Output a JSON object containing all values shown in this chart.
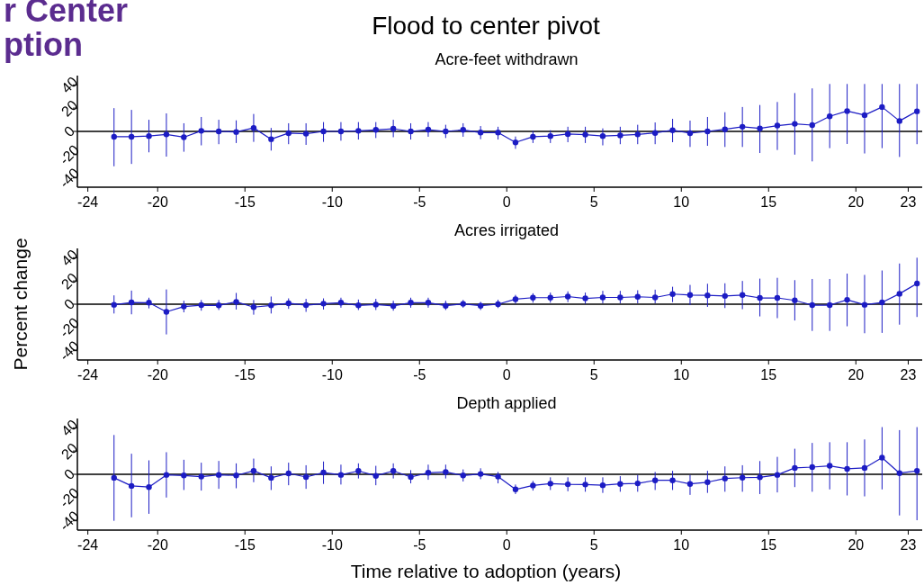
{
  "chart_data": [
    {
      "type": "line",
      "title": "Flood to center pivot",
      "subtitle": "Acre-feet withdrawn",
      "annotations": [
        "r Center",
        "ption"
      ],
      "x": [
        -22.5,
        -21.5,
        -20.5,
        -19.5,
        -18.5,
        -17.5,
        -16.5,
        -15.5,
        -14.5,
        -13.5,
        -12.5,
        -11.5,
        -10.5,
        -9.5,
        -8.5,
        -7.5,
        -6.5,
        -5.5,
        -4.5,
        -3.5,
        -2.5,
        -1.5,
        -0.5,
        0.5,
        1.5,
        2.5,
        3.5,
        4.5,
        5.5,
        6.5,
        7.5,
        8.5,
        9.5,
        10.5,
        11.5,
        12.5,
        13.5,
        14.5,
        15.5,
        16.5,
        17.5,
        18.5,
        19.5,
        20.5,
        21.5,
        22.5,
        23.5
      ],
      "xlim": [
        -24.6,
        23.8
      ],
      "xticks": [
        -24,
        -20,
        -15,
        -10,
        -5,
        0,
        5,
        10,
        15,
        20,
        23
      ],
      "ylim": [
        -48,
        48
      ],
      "yticks": [
        -40,
        -20,
        0,
        20,
        40
      ],
      "marker": "circle",
      "grid": false,
      "ref_lines": [
        {
          "axis": "y",
          "value": 0,
          "color": "#000000"
        }
      ],
      "series": [
        {
          "color": "#1c1cc4",
          "values": [
            -4.6,
            -4.6,
            -4,
            -2.6,
            -5,
            0.5,
            0,
            -0.5,
            3,
            -6.7,
            -1.5,
            -2,
            0,
            0,
            0.5,
            1.3,
            2.3,
            0,
            1.5,
            0,
            1.3,
            -1,
            -1,
            -9.5,
            -4.6,
            -4,
            -2.3,
            -2.8,
            -4,
            -3.4,
            -2.6,
            -1.3,
            1,
            -1.5,
            0,
            1.8,
            4,
            2.6,
            5,
            6.5,
            5.4,
            13,
            17.5,
            14,
            21,
            9,
            17.3
          ],
          "errors": [
            [
              -30,
              20
            ],
            [
              -28,
              18.5
            ],
            [
              -18,
              10
            ],
            [
              -21.7,
              15.5
            ],
            [
              -17.5,
              7
            ],
            [
              -12,
              12.4
            ],
            [
              -11,
              10
            ],
            [
              -10,
              9.5
            ],
            [
              -9,
              15
            ],
            [
              -16.5,
              3
            ],
            [
              -11,
              7
            ],
            [
              -11.6,
              7
            ],
            [
              -9,
              8
            ],
            [
              -8,
              8
            ],
            [
              -7,
              8
            ],
            [
              -5.7,
              8
            ],
            [
              -5,
              10
            ],
            [
              -7,
              7
            ],
            [
              -4.6,
              8
            ],
            [
              -5.7,
              5.7
            ],
            [
              -4.6,
              7
            ],
            [
              -6.7,
              4.6
            ],
            [
              -7,
              4
            ],
            [
              -15,
              -4.4
            ],
            [
              -10,
              0.5
            ],
            [
              -10,
              1
            ],
            [
              -9.3,
              4
            ],
            [
              -10,
              4
            ],
            [
              -12,
              2.6
            ],
            [
              -11,
              4
            ],
            [
              -11,
              5.7
            ],
            [
              -11,
              7.7
            ],
            [
              -9.3,
              10.8
            ],
            [
              -13.4,
              9.3
            ],
            [
              -12.4,
              12.4
            ],
            [
              -13.4,
              16.5
            ],
            [
              -13.4,
              21
            ],
            [
              -18.6,
              22.7
            ],
            [
              -16,
              25.3
            ],
            [
              -20,
              33
            ],
            [
              -25.8,
              37
            ],
            [
              -14.4,
              40.8
            ],
            [
              -10.8,
              40.8
            ],
            [
              -19,
              40.8
            ],
            [
              -14.4,
              40.8
            ],
            [
              -22,
              40.8
            ],
            [
              -11,
              40.8
            ]
          ]
        }
      ]
    },
    {
      "type": "line",
      "subtitle": "Acres irrigated",
      "ylabel": "Percent change",
      "x": [
        -22.5,
        -21.5,
        -20.5,
        -19.5,
        -18.5,
        -17.5,
        -16.5,
        -15.5,
        -14.5,
        -13.5,
        -12.5,
        -11.5,
        -10.5,
        -9.5,
        -8.5,
        -7.5,
        -6.5,
        -5.5,
        -4.5,
        -3.5,
        -2.5,
        -1.5,
        -0.5,
        0.5,
        1.5,
        2.5,
        3.5,
        4.5,
        5.5,
        6.5,
        7.5,
        8.5,
        9.5,
        10.5,
        11.5,
        12.5,
        13.5,
        14.5,
        15.5,
        16.5,
        17.5,
        18.5,
        19.5,
        20.5,
        21.5,
        22.5,
        23.5
      ],
      "xlim": [
        -24.6,
        23.8
      ],
      "xticks": [
        -24,
        -20,
        -15,
        -10,
        -5,
        0,
        5,
        10,
        15,
        20,
        23
      ],
      "ylim": [
        -48,
        48
      ],
      "yticks": [
        -40,
        -20,
        0,
        20,
        40
      ],
      "marker": "circle",
      "grid": false,
      "ref_lines": [
        {
          "axis": "y",
          "value": 0,
          "color": "#000000"
        }
      ],
      "series": [
        {
          "color": "#1c1cc4",
          "values": [
            -0.5,
            1.5,
            1.3,
            -6.6,
            -2,
            -0.8,
            -1,
            2,
            -2.5,
            -1,
            0.8,
            -0.8,
            0.5,
            1.3,
            -1,
            -0.3,
            -1.5,
            1.3,
            1.3,
            -1.3,
            0.3,
            -1.3,
            0,
            4.3,
            5.6,
            5.6,
            6.6,
            5,
            5.8,
            5.8,
            6.4,
            5.8,
            8.7,
            7.9,
            7.6,
            7.1,
            7.9,
            5.4,
            5.4,
            3.3,
            -0.8,
            -0.8,
            3.8,
            -0.5,
            1.5,
            9,
            17.8
          ],
          "errors": [
            [
              -8,
              7.6
            ],
            [
              -8.7,
              11.7
            ],
            [
              -3.6,
              5.6
            ],
            [
              -26,
              12.7
            ],
            [
              -7,
              3
            ],
            [
              -5.6,
              3.6
            ],
            [
              -5,
              3.6
            ],
            [
              -4.6,
              9.7
            ],
            [
              -9,
              3.6
            ],
            [
              -8,
              6.6
            ],
            [
              -4,
              5
            ],
            [
              -6.6,
              4.6
            ],
            [
              -4.6,
              5
            ],
            [
              -3,
              5.6
            ],
            [
              -5,
              4
            ],
            [
              -5,
              4.6
            ],
            [
              -5.6,
              3
            ],
            [
              -3,
              5.6
            ],
            [
              -3,
              5.6
            ],
            [
              -5,
              3
            ],
            [
              -3,
              3.6
            ],
            [
              -5,
              2
            ],
            [
              -3.3,
              3.8
            ],
            [
              0.3,
              8
            ],
            [
              1.3,
              9.4
            ],
            [
              1.3,
              10
            ],
            [
              1.8,
              11
            ],
            [
              0.3,
              10
            ],
            [
              0.8,
              11.5
            ],
            [
              0.8,
              11.5
            ],
            [
              0.8,
              12
            ],
            [
              0.8,
              12.5
            ],
            [
              1.8,
              15
            ],
            [
              -0.8,
              16.6
            ],
            [
              -2.3,
              17.6
            ],
            [
              -3.3,
              18
            ],
            [
              -4.3,
              20
            ],
            [
              -10.5,
              22
            ],
            [
              -12,
              22.7
            ],
            [
              -14,
              20.7
            ],
            [
              -23,
              21.7
            ],
            [
              -23,
              21.7
            ],
            [
              -19,
              26.3
            ],
            [
              -25,
              25.2
            ],
            [
              -24.7,
              29
            ],
            [
              -17.6,
              35
            ],
            [
              -11,
              40
            ]
          ]
        }
      ]
    },
    {
      "type": "line",
      "subtitle": "Depth applied",
      "xlabel": "Time relative to adoption (years)",
      "x": [
        -22.5,
        -21.5,
        -20.5,
        -19.5,
        -18.5,
        -17.5,
        -16.5,
        -15.5,
        -14.5,
        -13.5,
        -12.5,
        -11.5,
        -10.5,
        -9.5,
        -8.5,
        -7.5,
        -6.5,
        -5.5,
        -4.5,
        -3.5,
        -2.5,
        -1.5,
        -0.5,
        0.5,
        1.5,
        2.5,
        3.5,
        4.5,
        5.5,
        6.5,
        7.5,
        8.5,
        9.5,
        10.5,
        11.5,
        12.5,
        13.5,
        14.5,
        15.5,
        16.5,
        17.5,
        18.5,
        19.5,
        20.5,
        21.5,
        22.5,
        23.5
      ],
      "xlim": [
        -24.6,
        23.8
      ],
      "xticks": [
        -24,
        -20,
        -15,
        -10,
        -5,
        0,
        5,
        10,
        15,
        20,
        23
      ],
      "ylim": [
        -48,
        48
      ],
      "yticks": [
        -40,
        -20,
        0,
        20,
        40
      ],
      "marker": "circle",
      "grid": false,
      "ref_lines": [
        {
          "axis": "y",
          "value": 0,
          "color": "#000000"
        }
      ],
      "series": [
        {
          "color": "#1c1cc4",
          "values": [
            -3,
            -10,
            -11,
            -0.5,
            -1,
            -2,
            -0.5,
            -1,
            3,
            -3,
            0.8,
            -2.3,
            1.5,
            -0.5,
            2.9,
            -1.3,
            2.9,
            -2.3,
            1.3,
            2,
            -1,
            0.3,
            -2,
            -13,
            -9.6,
            -8,
            -8.6,
            -8.8,
            -9.4,
            -8.3,
            -7.8,
            -5.2,
            -5.2,
            -8.3,
            -6.8,
            -3.6,
            -2.9,
            -2.6,
            -0.5,
            5.5,
            6.2,
            7.3,
            4.7,
            5.5,
            14.3,
            1,
            3
          ],
          "errors": [
            [
              -40,
              33.8
            ],
            [
              -37,
              17.7
            ],
            [
              -34,
              12
            ],
            [
              -20,
              19
            ],
            [
              -13.5,
              12.5
            ],
            [
              -14,
              10
            ],
            [
              -12.5,
              11.5
            ],
            [
              -12,
              9.4
            ],
            [
              -6.8,
              13.5
            ],
            [
              -13.5,
              6.8
            ],
            [
              -9.4,
              10
            ],
            [
              -12.5,
              7.8
            ],
            [
              -8.3,
              11
            ],
            [
              -8.8,
              8.3
            ],
            [
              -3.6,
              9.4
            ],
            [
              -9.4,
              7.3
            ],
            [
              -3.6,
              9.4
            ],
            [
              -7.8,
              3.6
            ],
            [
              -4.7,
              8.3
            ],
            [
              -3.6,
              8.3
            ],
            [
              -6.2,
              4.2
            ],
            [
              -4.2,
              5.2
            ],
            [
              -7.8,
              2
            ],
            [
              -17,
              -8.8
            ],
            [
              -14,
              -5.7
            ],
            [
              -13.5,
              -2.6
            ],
            [
              -14.6,
              -2.6
            ],
            [
              -15,
              -2.6
            ],
            [
              -16,
              -2.6
            ],
            [
              -15,
              -1.6
            ],
            [
              -15,
              -0.5
            ],
            [
              -13.5,
              2
            ],
            [
              -13.5,
              3
            ],
            [
              -17.7,
              -0.5
            ],
            [
              -16,
              3
            ],
            [
              -15,
              6.8
            ],
            [
              -15,
              7.8
            ],
            [
              -17,
              11.4
            ],
            [
              -15.6,
              15
            ],
            [
              -11,
              22
            ],
            [
              -15,
              27
            ],
            [
              -13,
              27.6
            ],
            [
              -18.2,
              27.6
            ],
            [
              -19,
              30
            ],
            [
              -13,
              40.6
            ],
            [
              -35.4,
              38
            ],
            [
              -39.5,
              40.6
            ]
          ]
        }
      ]
    }
  ]
}
